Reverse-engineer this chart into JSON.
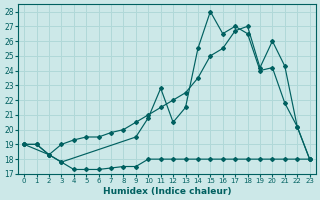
{
  "xlabel": "Humidex (Indice chaleur)",
  "bg_color": "#cce8e8",
  "grid_color": "#b0d8d8",
  "line_color": "#006060",
  "xlim": [
    -0.5,
    23.5
  ],
  "ylim": [
    17,
    28.5
  ],
  "xticks": [
    0,
    1,
    2,
    3,
    4,
    5,
    6,
    7,
    8,
    9,
    10,
    11,
    12,
    13,
    14,
    15,
    16,
    17,
    18,
    19,
    20,
    21,
    22,
    23
  ],
  "yticks": [
    17,
    18,
    19,
    20,
    21,
    22,
    23,
    24,
    25,
    26,
    27,
    28
  ],
  "series1_x": [
    0,
    1,
    2,
    3,
    4,
    5,
    6,
    7,
    8,
    9,
    10,
    11,
    12,
    13,
    14,
    15,
    16,
    17,
    18,
    19,
    20,
    21,
    22,
    23
  ],
  "series1_y": [
    19,
    19,
    18.3,
    17.8,
    17.3,
    17.3,
    17.3,
    17.4,
    17.5,
    17.5,
    18,
    18,
    18,
    18,
    18,
    18,
    18,
    18,
    18,
    18,
    18,
    18,
    18,
    18
  ],
  "series2_x": [
    0,
    2,
    3,
    9,
    10,
    11,
    12,
    13,
    14,
    15,
    16,
    17,
    18,
    19,
    20,
    21,
    22,
    23
  ],
  "series2_y": [
    19,
    18.3,
    17.8,
    19.5,
    20.8,
    22.8,
    20.5,
    21.5,
    25.5,
    28,
    26.5,
    27,
    26.5,
    24,
    24.2,
    21.8,
    20.2,
    18
  ],
  "series3_x": [
    0,
    1,
    2,
    3,
    4,
    5,
    6,
    7,
    8,
    9,
    10,
    11,
    12,
    13,
    14,
    15,
    16,
    17,
    18,
    19,
    20,
    21,
    22,
    23
  ],
  "series3_y": [
    19,
    19,
    18.3,
    19,
    19.3,
    19.5,
    19.5,
    19.8,
    20,
    20.5,
    21,
    21.5,
    22,
    22.5,
    23.5,
    25,
    25.5,
    26.7,
    27,
    24.2,
    26,
    24.3,
    20.2,
    18
  ]
}
